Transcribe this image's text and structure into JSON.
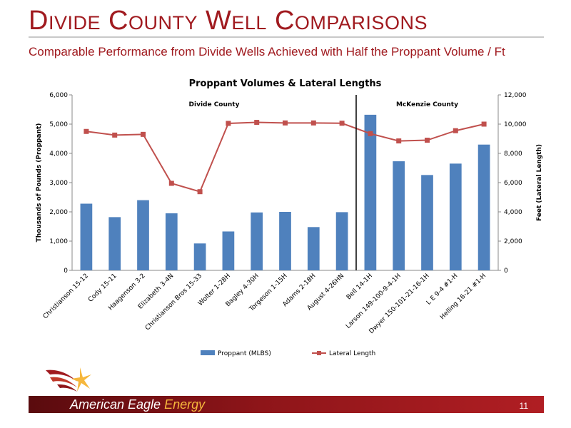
{
  "slide": {
    "title": "Divide County Well Comparisons",
    "subtitle": "Comparable Performance from Divide Wells Achieved with Half the Proppant Volume / Ft",
    "page_number": "11",
    "brand_main": "American Eagle",
    "brand_accent": "Energy"
  },
  "colors": {
    "title": "#a01a1f",
    "bar": "#4f81bd",
    "line": "#c0504d",
    "footer": "#8e1519",
    "brand_accent": "#f6b73c"
  },
  "icons": {
    "logo": "eagle-logo-icon"
  },
  "chart_data": {
    "type": "bar",
    "title": "Proppant Volumes & Lateral Lengths",
    "ylabel": "Thousands of Pounds  (Proppant)",
    "y2label": "Feet  (Lateral Length)",
    "ylim": [
      0,
      6000
    ],
    "y2lim": [
      0,
      12000
    ],
    "yticks": [
      "0",
      "1,000",
      "2,000",
      "3,000",
      "4,000",
      "5,000",
      "6,000"
    ],
    "y2ticks": [
      "0",
      "2,000",
      "4,000",
      "6,000",
      "8,000",
      "10,000",
      "12,000"
    ],
    "grid": false,
    "legend_position": "bottom",
    "regions": [
      "Divide County",
      "McKenzie County"
    ],
    "divider_after_index": 9,
    "categories": [
      "Christianson 15-12",
      "Cody 15-11",
      "Haagenson 3-2",
      "Elizabeth 3-4N",
      "Christianson Bros 15-33",
      "Wolter 1-28H",
      "Bagley 4-30H",
      "Torgeson 1-15H",
      "Adams 2-18H",
      "August 4-26HN",
      "Bell 14-1H",
      "Larson 149-100-9-4-1H",
      "Dwyer 150-101-21-16-1H",
      "L E 9-4 #1-H",
      "Helling 16-21 #1-H"
    ],
    "series": [
      {
        "name": "Proppant (MLBS)",
        "type": "bar",
        "axis": "left",
        "values": [
          2280,
          1820,
          2400,
          1950,
          920,
          1330,
          1980,
          2000,
          1480,
          1990,
          5320,
          3730,
          3260,
          3650,
          4300
        ]
      },
      {
        "name": "Lateral Length",
        "type": "line",
        "axis": "right",
        "values": [
          9500,
          9250,
          9300,
          5950,
          5380,
          10050,
          10120,
          10080,
          10080,
          10060,
          9350,
          8850,
          8900,
          9550,
          10000
        ]
      }
    ]
  }
}
